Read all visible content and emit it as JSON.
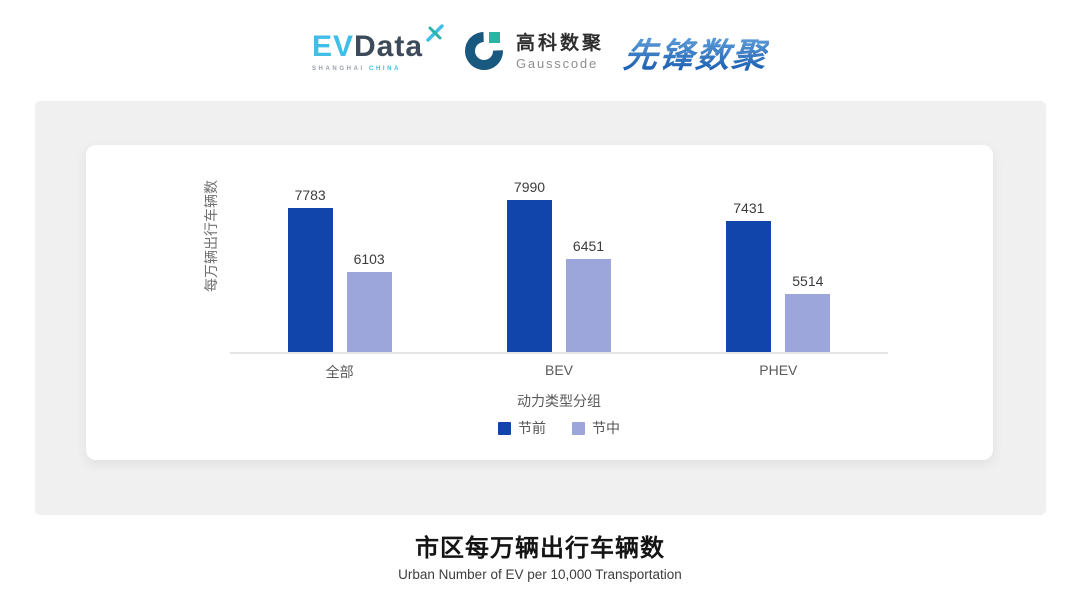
{
  "header": {
    "evdata": {
      "ev": "EV",
      "data": "Data",
      "sub_shanghai": "SHANGHAI",
      "sub_china": "CHINA"
    },
    "gausscode": {
      "cn": "高科数聚",
      "en": "Gausscode"
    },
    "pioneer": {
      "text": "先锋数聚"
    }
  },
  "chart_data": {
    "type": "bar",
    "categories": [
      "全部",
      "BEV",
      "PHEV"
    ],
    "series": [
      {
        "name": "节前",
        "color": "#1245AB",
        "values": [
          7783,
          7990,
          7431
        ]
      },
      {
        "name": "节中",
        "color": "#9CA6DA",
        "values": [
          6103,
          6451,
          5514
        ]
      }
    ],
    "title": "市区每万辆出行车辆数",
    "xlabel": "动力类型分组",
    "ylabel": "每万辆出行车辆数",
    "ylim": [
      4000,
      8200
    ],
    "grid": false,
    "legend_position": "bottom",
    "value_labels": true
  },
  "footer": {
    "title": "市区每万辆出行车辆数",
    "subtitle": "Urban Number of EV per 10,000 Transportation"
  },
  "colors": {
    "panel_bg": "#F0F0F0",
    "card_bg": "#FFFFFF",
    "axis_line": "#E5E5E5",
    "series_pre": "#1245AB",
    "series_mid": "#9CA6DA",
    "brand_cyan": "#3FBEE8",
    "brand_slate": "#3D4A5A",
    "brand_blue": "#1E60B3",
    "gauss_teal": "#2BB3A3",
    "gauss_navy": "#19587F"
  }
}
